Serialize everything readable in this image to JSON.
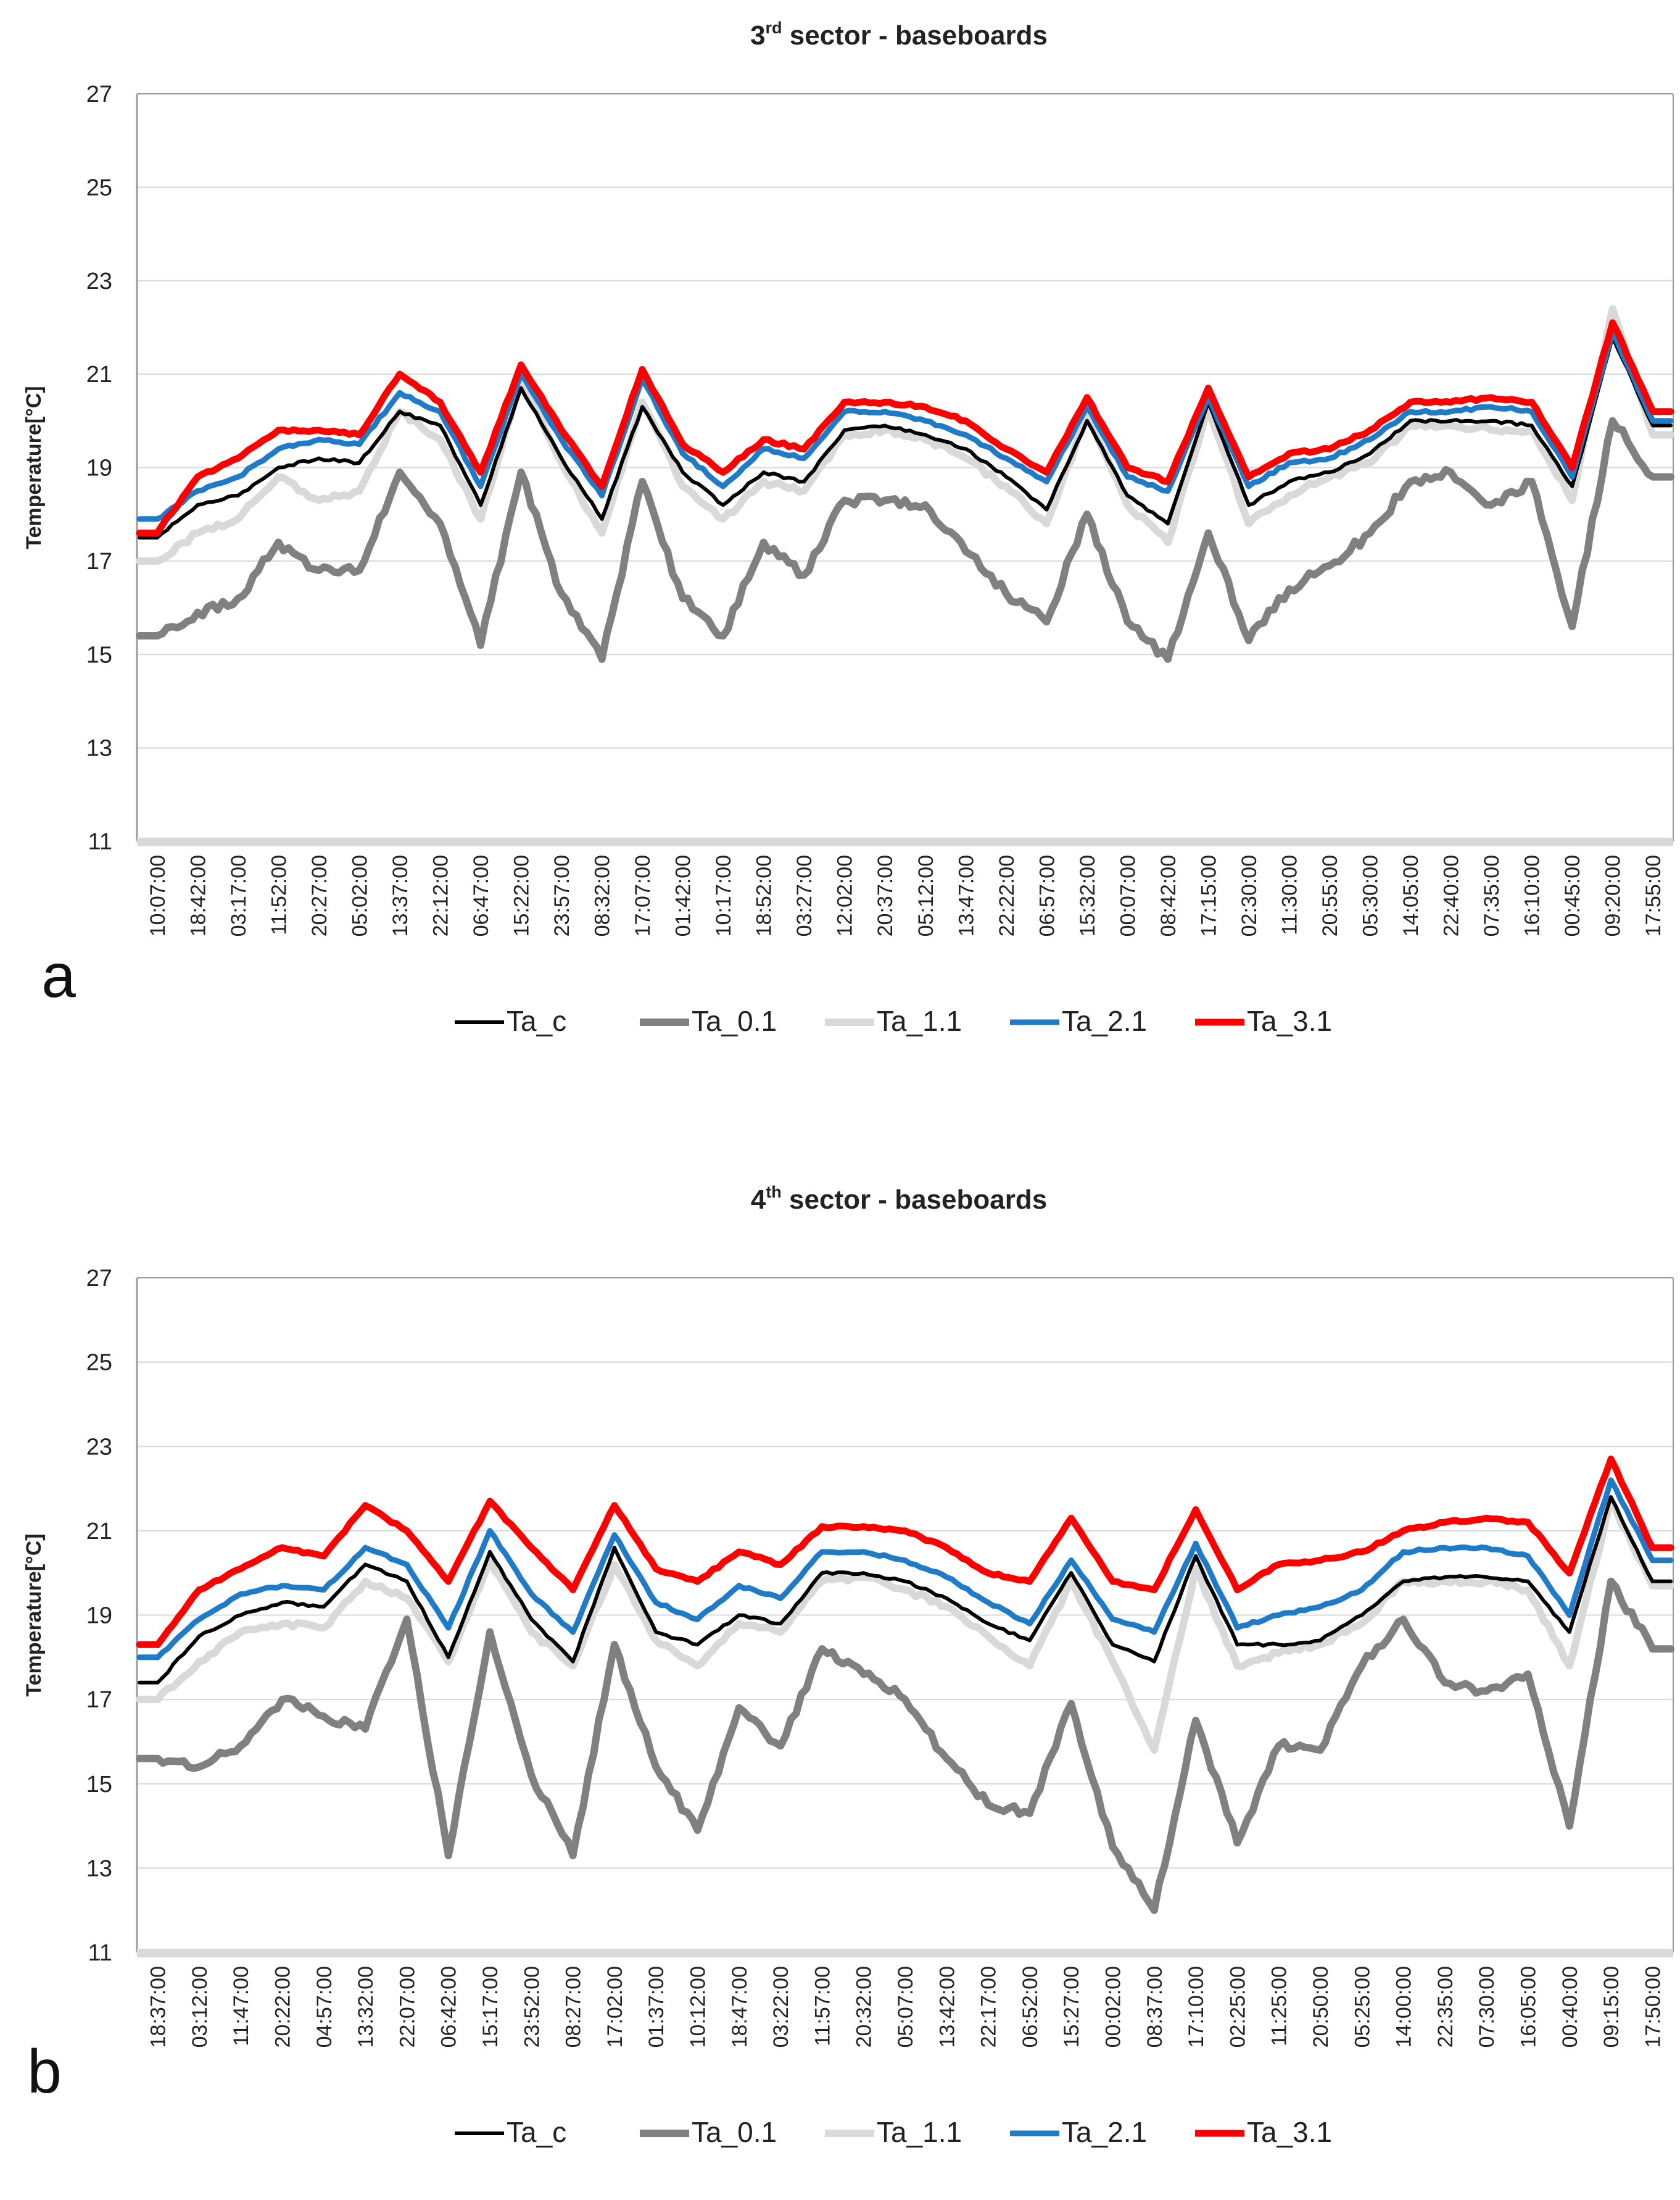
{
  "chart_data": [
    {
      "type": "line",
      "panel_label": "a",
      "title": {
        "prefix": "3",
        "sup": "rd",
        "suffix": " sector - baseboards"
      },
      "ylabel": "Temperature[°C]",
      "xlabel": "",
      "ylim": [
        11,
        27
      ],
      "yticks": [
        11,
        13,
        15,
        17,
        19,
        21,
        23,
        25,
        27
      ],
      "grid": true,
      "legend_position": "bottom-center",
      "categories": [
        "10:07:00",
        "18:42:00",
        "03:17:00",
        "11:52:00",
        "20:27:00",
        "05:02:00",
        "13:37:00",
        "22:12:00",
        "06:47:00",
        "15:22:00",
        "23:57:00",
        "08:32:00",
        "17:07:00",
        "01:42:00",
        "10:17:00",
        "18:52:00",
        "03:27:00",
        "12:02:00",
        "20:37:00",
        "05:12:00",
        "13:47:00",
        "22:22:00",
        "06:57:00",
        "15:32:00",
        "00:07:00",
        "08:42:00",
        "17:15:00",
        "02:30:00",
        "11:30:00",
        "20:55:00",
        "05:30:00",
        "14:05:00",
        "22:40:00",
        "07:35:00",
        "16:10:00",
        "00:45:00",
        "09:20:00",
        "17:55:00"
      ],
      "series": [
        {
          "name": "Ta_c",
          "color": "#000000",
          "values": [
            17.5,
            18.2,
            18.4,
            19.0,
            19.2,
            19.1,
            20.2,
            19.9,
            18.2,
            20.7,
            19.2,
            17.9,
            20.3,
            18.9,
            18.2,
            18.9,
            18.7,
            19.8,
            19.9,
            19.7,
            19.4,
            18.8,
            18.1,
            20.0,
            18.4,
            17.8,
            20.4,
            18.2,
            18.7,
            18.9,
            19.3,
            20.0,
            20.0,
            20.0,
            19.9,
            18.6,
            21.8,
            19.9
          ]
        },
        {
          "name": "Ta_0.1",
          "color": "#808080",
          "values": [
            15.4,
            15.9,
            16.2,
            17.4,
            16.8,
            16.8,
            18.9,
            17.8,
            15.2,
            18.9,
            16.3,
            14.9,
            18.7,
            16.2,
            15.4,
            17.4,
            16.7,
            18.3,
            18.3,
            18.2,
            17.2,
            16.3,
            15.7,
            18.0,
            15.7,
            14.9,
            17.6,
            15.3,
            16.4,
            16.9,
            17.6,
            18.7,
            18.9,
            18.2,
            18.7,
            15.6,
            20.0,
            18.8
          ]
        },
        {
          "name": "Ta_1.1",
          "color": "#d9d9d9",
          "values": [
            17.0,
            17.6,
            17.9,
            18.8,
            18.3,
            18.5,
            20.2,
            19.6,
            17.9,
            20.9,
            19.1,
            17.6,
            20.4,
            18.6,
            17.9,
            18.7,
            18.5,
            19.7,
            19.8,
            19.6,
            19.2,
            18.6,
            17.8,
            20.1,
            18.2,
            17.4,
            20.3,
            17.8,
            18.4,
            18.8,
            19.1,
            19.9,
            19.9,
            19.8,
            19.8,
            18.3,
            22.4,
            19.7
          ]
        },
        {
          "name": "Ta_2.1",
          "color": "#1f7bc7",
          "values": [
            17.9,
            18.5,
            18.8,
            19.4,
            19.6,
            19.5,
            20.6,
            20.2,
            18.6,
            21.0,
            19.6,
            18.4,
            20.9,
            19.3,
            18.6,
            19.4,
            19.2,
            20.2,
            20.2,
            20.0,
            19.7,
            19.2,
            18.7,
            20.3,
            18.8,
            18.5,
            20.5,
            18.6,
            19.1,
            19.2,
            19.6,
            20.2,
            20.2,
            20.3,
            20.2,
            18.8,
            21.9,
            20.0
          ]
        },
        {
          "name": "Ta_3.1",
          "color": "#ff0000",
          "values": [
            17.6,
            18.8,
            19.2,
            19.8,
            19.8,
            19.7,
            21.0,
            20.4,
            18.9,
            21.2,
            19.8,
            18.6,
            21.1,
            19.5,
            18.9,
            19.6,
            19.4,
            20.4,
            20.4,
            20.3,
            20.0,
            19.4,
            18.9,
            20.5,
            19.0,
            18.7,
            20.7,
            18.8,
            19.3,
            19.4,
            19.8,
            20.4,
            20.4,
            20.5,
            20.4,
            19.0,
            22.1,
            20.2
          ]
        }
      ]
    },
    {
      "type": "line",
      "panel_label": "b",
      "title": {
        "prefix": "4",
        "sup": "th",
        "suffix": " sector - baseboards"
      },
      "ylabel": "Temperature[°C]",
      "xlabel": "",
      "ylim": [
        11,
        27
      ],
      "yticks": [
        11,
        13,
        15,
        17,
        19,
        21,
        23,
        25,
        27
      ],
      "grid": true,
      "legend_position": "bottom-center",
      "categories": [
        "18:37:00",
        "03:12:00",
        "11:47:00",
        "20:22:00",
        "04:57:00",
        "13:32:00",
        "22:07:00",
        "06:42:00",
        "15:17:00",
        "23:52:00",
        "08:27:00",
        "17:02:00",
        "01:37:00",
        "10:12:00",
        "18:47:00",
        "03:22:00",
        "11:57:00",
        "20:32:00",
        "05:07:00",
        "13:42:00",
        "22:17:00",
        "06:52:00",
        "15:27:00",
        "00:02:00",
        "08:37:00",
        "17:10:00",
        "02:25:00",
        "11:25:00",
        "20:50:00",
        "05:25:00",
        "14:00:00",
        "22:35:00",
        "07:30:00",
        "16:05:00",
        "00:40:00",
        "09:15:00",
        "17:50:00"
      ],
      "series": [
        {
          "name": "Ta_c",
          "color": "#000000",
          "values": [
            17.4,
            18.5,
            19.0,
            19.3,
            19.2,
            20.2,
            19.8,
            18.0,
            20.5,
            18.9,
            17.9,
            20.6,
            18.6,
            18.3,
            19.0,
            18.8,
            20.0,
            20.0,
            19.8,
            19.4,
            18.8,
            18.4,
            20.0,
            18.3,
            17.9,
            20.4,
            18.3,
            18.3,
            18.4,
            19.0,
            19.8,
            19.9,
            19.9,
            19.8,
            18.6,
            21.8,
            19.8
          ]
        },
        {
          "name": "Ta_0.1",
          "color": "#808080",
          "values": [
            15.6,
            15.4,
            15.9,
            17.0,
            16.6,
            16.3,
            18.9,
            13.3,
            18.6,
            15.2,
            13.3,
            18.3,
            15.4,
            13.9,
            16.8,
            15.9,
            18.2,
            17.6,
            17.0,
            15.6,
            14.5,
            14.3,
            16.9,
            13.5,
            12.0,
            16.5,
            13.6,
            15.9,
            15.8,
            17.8,
            18.9,
            17.4,
            17.2,
            17.6,
            14.0,
            19.8,
            18.2
          ]
        },
        {
          "name": "Ta_1.1",
          "color": "#d9d9d9",
          "values": [
            17.0,
            17.9,
            18.6,
            18.8,
            18.7,
            19.8,
            19.4,
            17.9,
            20.3,
            18.6,
            17.8,
            20.2,
            18.4,
            17.8,
            18.8,
            18.6,
            19.8,
            19.9,
            19.6,
            19.2,
            18.5,
            17.8,
            19.8,
            17.9,
            15.8,
            20.1,
            17.8,
            18.1,
            18.3,
            18.8,
            19.8,
            19.8,
            19.8,
            19.6,
            17.8,
            21.7,
            19.7
          ]
        },
        {
          "name": "Ta_2.1",
          "color": "#1f7bc7",
          "values": [
            18.0,
            18.9,
            19.5,
            19.7,
            19.6,
            20.6,
            20.2,
            18.7,
            21.0,
            19.5,
            18.6,
            20.9,
            19.3,
            18.9,
            19.7,
            19.4,
            20.5,
            20.5,
            20.3,
            19.9,
            19.3,
            18.8,
            20.3,
            18.9,
            18.6,
            20.7,
            18.7,
            19.0,
            19.2,
            19.6,
            20.5,
            20.6,
            20.6,
            20.4,
            19.0,
            22.2,
            20.3
          ]
        },
        {
          "name": "Ta_3.1",
          "color": "#ff0000",
          "values": [
            18.3,
            19.6,
            20.1,
            20.6,
            20.4,
            21.6,
            21.0,
            19.8,
            21.7,
            20.6,
            19.6,
            21.6,
            20.1,
            19.8,
            20.5,
            20.2,
            21.1,
            21.1,
            21.0,
            20.6,
            20.0,
            19.8,
            21.3,
            19.8,
            19.6,
            21.5,
            19.6,
            20.2,
            20.3,
            20.5,
            21.0,
            21.2,
            21.3,
            21.2,
            20.0,
            22.7,
            20.6
          ]
        }
      ]
    }
  ]
}
